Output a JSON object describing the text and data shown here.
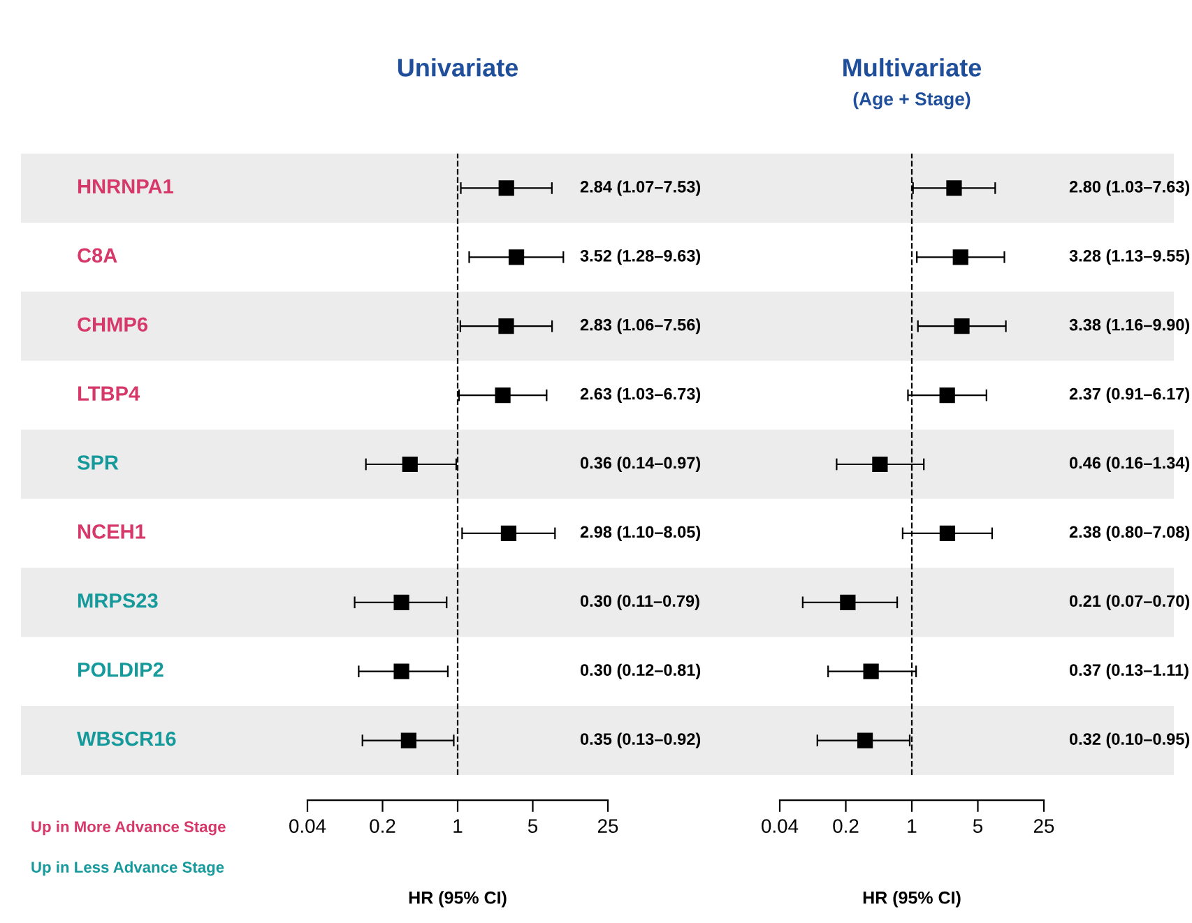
{
  "chart_data": [
    {
      "type": "scatter",
      "orientation": "horizontal",
      "title": "Univariate",
      "xlabel": "HR (95% CI)",
      "categories": [
        "HNRNPA1",
        "C8A",
        "CHMP6",
        "LTBP4",
        "SPR",
        "NCEH1",
        "MRPS23",
        "POLDIP2",
        "WBSCR16"
      ],
      "colors": [
        "#d6386a",
        "#d6386a",
        "#d6386a",
        "#d6386a",
        "#16999a",
        "#d6386a",
        "#16999a",
        "#16999a",
        "#16999a"
      ],
      "series": [
        {
          "color": "#000000",
          "values": [
            2.84,
            3.52,
            2.83,
            2.63,
            0.36,
            2.98,
            0.3,
            0.3,
            0.35
          ],
          "errors": [
            [
              1.07,
              7.53
            ],
            [
              1.28,
              9.63
            ],
            [
              1.06,
              7.56
            ],
            [
              1.03,
              6.73
            ],
            [
              0.14,
              0.97
            ],
            [
              1.1,
              8.05
            ],
            [
              0.11,
              0.79
            ],
            [
              0.12,
              0.81
            ],
            [
              0.13,
              0.92
            ]
          ],
          "value_labels": [
            "2.84 (1.07–7.53)",
            "3.52 (1.28–9.63)",
            "2.83 (1.06–7.56)",
            "2.63 (1.03–6.73)",
            "0.36 (0.14–0.97)",
            "2.98 (1.10–8.05)",
            "0.30 (0.11–0.79)",
            "0.30 (0.12–0.81)",
            "0.35 (0.13–0.92)"
          ]
        }
      ],
      "log": "x",
      "xlim": [
        0.04,
        25
      ],
      "xticks": [
        0.04,
        0.2,
        1,
        5,
        25
      ],
      "marker": "square",
      "ref_lines": [
        {
          "axis": "x",
          "value": 1,
          "line_style": "dashed"
        }
      ],
      "annotations": [
        "Up in More Advance Stage",
        "Up in Less Advance Stage"
      ]
    },
    {
      "type": "scatter",
      "orientation": "horizontal",
      "title": "Multivariate",
      "subtitle": "(Age + Stage)",
      "xlabel": "HR (95% CI)",
      "series": [
        {
          "color": "#000000",
          "values": [
            2.8,
            3.28,
            3.38,
            2.37,
            0.46,
            2.38,
            0.21,
            0.37,
            0.32
          ],
          "errors": [
            [
              1.03,
              7.63
            ],
            [
              1.13,
              9.55
            ],
            [
              1.16,
              9.9
            ],
            [
              0.91,
              6.17
            ],
            [
              0.16,
              1.34
            ],
            [
              0.8,
              7.08
            ],
            [
              0.07,
              0.7
            ],
            [
              0.13,
              1.11
            ],
            [
              0.1,
              0.95
            ]
          ],
          "value_labels": [
            "2.80 (1.03–7.63)",
            "3.28 (1.13–9.55)",
            "3.38 (1.16–9.90)",
            "2.37 (0.91–6.17)",
            "0.46 (0.16–1.34)",
            "2.38 (0.80–7.08)",
            "0.21 (0.07–0.70)",
            "0.37 (0.13–1.11)",
            "0.32 (0.10–0.95)"
          ]
        }
      ],
      "log": "x",
      "xlim": [
        0.04,
        25
      ],
      "xticks": [
        0.04,
        0.2,
        1,
        5,
        25
      ],
      "marker": "square",
      "ref_lines": [
        {
          "axis": "x",
          "value": 1,
          "line_style": "dashed"
        }
      ]
    }
  ]
}
